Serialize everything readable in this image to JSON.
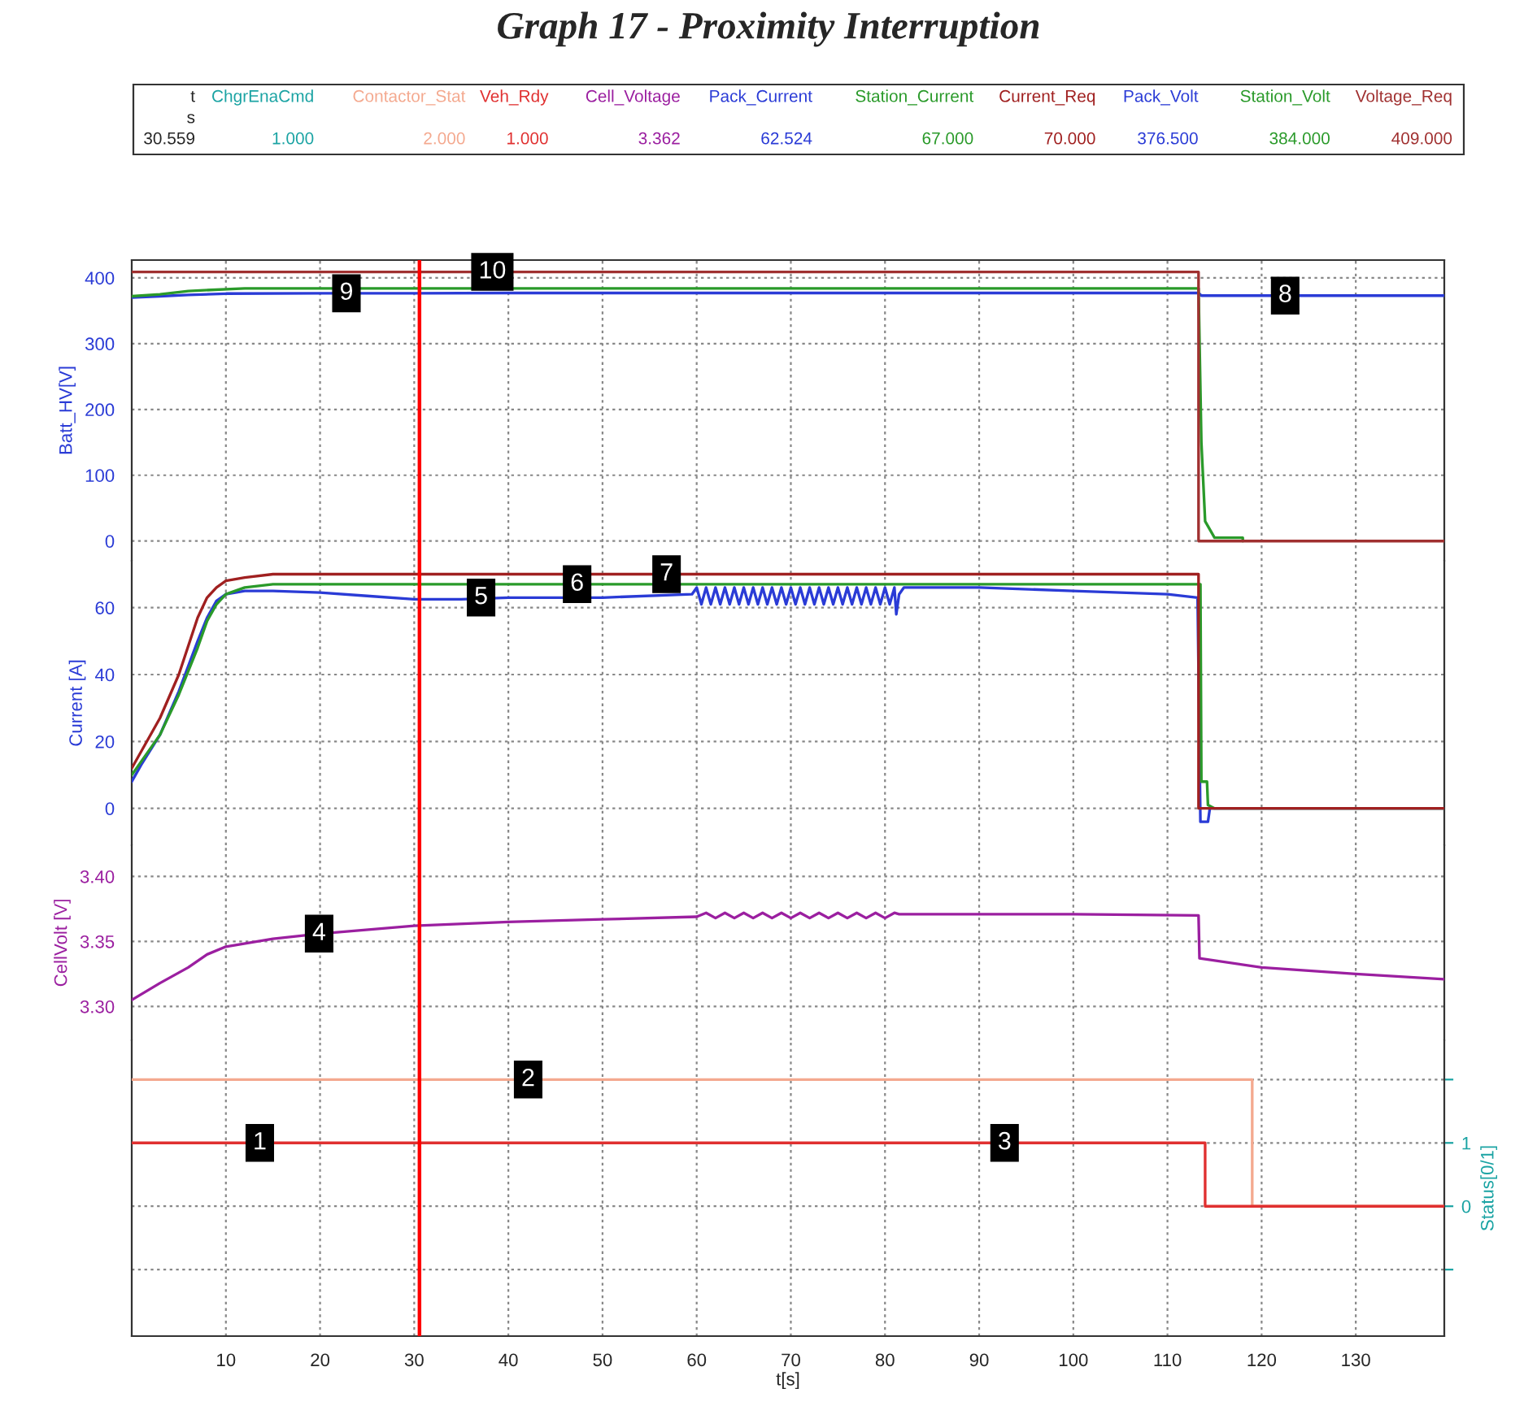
{
  "chart_data": [
    {
      "type": "line",
      "title": "Graph 17 - Proximity Interruption",
      "ylabel": "Batt_HV[V]",
      "xlim": [
        0,
        139.4
      ],
      "xticks": [
        10,
        20,
        30,
        40,
        50,
        60,
        70,
        80,
        90,
        100,
        110,
        120,
        130
      ],
      "ylim": [
        -30,
        427
      ],
      "yticks": [
        0,
        100,
        200,
        300,
        400
      ],
      "grid": true,
      "tick_labels": "y",
      "series": [
        {
          "name": "Pack_Volt",
          "color": "#2a3bd6",
          "x": [
            0,
            3,
            6,
            10,
            20,
            30,
            40,
            60,
            80,
            100,
            113.3,
            113.6,
            120,
            139.4
          ],
          "values": [
            370,
            372,
            374,
            376,
            376.5,
            376.5,
            377,
            377,
            377,
            377,
            377,
            373,
            373,
            373
          ]
        },
        {
          "name": "Station_Volt",
          "color": "#2a9a2a",
          "x": [
            0,
            3,
            6,
            12,
            20,
            40,
            60,
            80,
            100,
            113.3,
            113.6,
            114,
            115,
            118,
            118
          ],
          "values": [
            372,
            375,
            380,
            384,
            384,
            384,
            384,
            384,
            384,
            384,
            150,
            30,
            5,
            5,
            0
          ]
        },
        {
          "name": "Voltage_Req",
          "color": "#a03030",
          "x": [
            0,
            113.3,
            113.3,
            139.4
          ],
          "values": [
            409,
            409,
            0,
            0
          ]
        }
      ],
      "ref_lines": [
        {
          "axis": "x",
          "value": 30.559,
          "color": "#ff0000"
        }
      ],
      "annotations": [
        "376.500",
        "384.000",
        "409.000",
        {
          "text": "8",
          "x": 122.5,
          "y": 373
        },
        {
          "text": "9",
          "x": 22.8,
          "y": 376.5
        },
        {
          "text": "10",
          "x": 38.3,
          "y": 409
        },
        "t",
        "s",
        "30.559"
      ]
    },
    {
      "type": "line",
      "ylabel": "Current [A]",
      "xlim": [
        0,
        139.4
      ],
      "xticks": [
        10,
        20,
        30,
        40,
        50,
        60,
        70,
        80,
        90,
        100,
        110,
        120,
        130
      ],
      "ylim": [
        -11,
        74
      ],
      "yticks": [
        0,
        20,
        40,
        60
      ],
      "grid": true,
      "tick_labels": "y",
      "series": [
        {
          "name": "Pack_Current",
          "color": "#2a3bd6",
          "x": [
            0,
            1,
            3,
            5,
            7,
            8,
            9,
            10,
            12,
            15,
            20,
            25,
            30,
            35,
            40,
            50,
            59.5,
            60,
            60.5,
            61,
            61.5,
            62,
            62.5,
            63,
            63.5,
            64,
            64.5,
            65,
            65.5,
            66,
            66.5,
            67,
            67.5,
            68,
            68.5,
            69,
            69.5,
            70,
            70.5,
            71,
            71.5,
            72,
            72.5,
            73,
            73.5,
            74,
            74.5,
            75,
            75.5,
            76,
            76.5,
            77,
            77.5,
            78,
            78.5,
            79,
            79.5,
            80,
            80.5,
            81,
            81.2,
            81.5,
            82,
            90,
            100,
            110,
            113.2,
            113.5,
            114.3,
            114.5,
            139.4
          ],
          "values": [
            8,
            13,
            22,
            35,
            50,
            57,
            62,
            64,
            65,
            65,
            64.5,
            63.5,
            62.5,
            62.5,
            63,
            63,
            64,
            66,
            61,
            66,
            61,
            66,
            61,
            66,
            61,
            66,
            61,
            66,
            61,
            66,
            61,
            66,
            61,
            66,
            61,
            66,
            61,
            66,
            61,
            66,
            61,
            66,
            61,
            66,
            61,
            66,
            61,
            66,
            61,
            66,
            61,
            66,
            61,
            66,
            61,
            66,
            61,
            66,
            61,
            66,
            58,
            64,
            66,
            66,
            65,
            64,
            63,
            -4,
            -4,
            0,
            0
          ]
        },
        {
          "name": "Station_Current",
          "color": "#2a9a2a",
          "x": [
            0,
            3,
            5,
            7,
            8,
            9,
            10,
            12,
            15,
            113.5,
            113.6,
            114.2,
            114.3,
            115,
            139.4
          ],
          "values": [
            10,
            22,
            34,
            48,
            56,
            61,
            64,
            66,
            67,
            67,
            8,
            8,
            1,
            0,
            0
          ]
        },
        {
          "name": "Current_Req",
          "color": "#a02020",
          "x": [
            0,
            3,
            5,
            7,
            8,
            9,
            10,
            12,
            15,
            113.3,
            113.3,
            139.4
          ],
          "values": [
            12,
            27,
            40,
            57,
            63,
            66,
            68,
            69,
            70,
            70,
            0,
            0
          ]
        }
      ],
      "ref_lines": [
        {
          "axis": "x",
          "value": 30.559,
          "color": "#ff0000"
        }
      ],
      "annotations": [
        "62.524",
        "67.000",
        "70.000",
        {
          "text": "5",
          "x": 37.1,
          "y": 63
        },
        {
          "text": "6",
          "x": 47.3,
          "y": 67
        },
        {
          "text": "7",
          "x": 56.8,
          "y": 70
        }
      ]
    },
    {
      "type": "line",
      "ylabel": "CellVolt [V]",
      "xlim": [
        0,
        139.4
      ],
      "xticks": [
        10,
        20,
        30,
        40,
        50,
        60,
        70,
        80,
        90,
        100,
        110,
        120,
        130
      ],
      "ylim": [
        3.274,
        3.424
      ],
      "yticks": [
        {
          "value": 3.3,
          "label": "3.30"
        },
        {
          "value": 3.35,
          "label": "3.35"
        },
        {
          "value": 3.4,
          "label": "3.40"
        }
      ],
      "grid": true,
      "tick_labels": "y",
      "series": [
        {
          "name": "Cell_Voltage",
          "color": "#9b1fa0",
          "x": [
            0,
            3,
            6,
            8,
            10,
            15,
            20,
            30,
            40,
            50,
            60,
            61,
            62,
            63,
            64,
            65,
            66,
            67,
            68,
            69,
            70,
            71,
            72,
            73,
            74,
            75,
            76,
            77,
            78,
            79,
            80,
            81,
            81.5,
            90,
            100,
            113.3,
            113.4,
            120,
            130,
            139.4
          ],
          "values": [
            3.305,
            3.318,
            3.33,
            3.34,
            3.346,
            3.352,
            3.356,
            3.362,
            3.365,
            3.367,
            3.369,
            3.372,
            3.368,
            3.372,
            3.368,
            3.372,
            3.368,
            3.372,
            3.368,
            3.372,
            3.368,
            3.372,
            3.368,
            3.372,
            3.368,
            3.372,
            3.368,
            3.372,
            3.368,
            3.372,
            3.368,
            3.372,
            3.371,
            3.371,
            3.371,
            3.37,
            3.337,
            3.33,
            3.325,
            3.321
          ]
        }
      ],
      "ref_lines": [
        {
          "axis": "x",
          "value": 30.559,
          "color": "#ff0000"
        }
      ],
      "annotations": [
        "3.362",
        {
          "text": "4",
          "x": 19.9,
          "y": 3.356
        }
      ]
    },
    {
      "type": "line",
      "xlabel": "t[s]",
      "ylabel": "Status[0/1]",
      "xlim": [
        0,
        139.4
      ],
      "xticks": [
        10,
        20,
        30,
        40,
        50,
        60,
        70,
        80,
        90,
        100,
        110,
        120,
        130
      ],
      "ylim": [
        -2.05,
        2.62
      ],
      "yticks": [
        {
          "value": -1,
          "label": null
        },
        0,
        1,
        {
          "value": 2,
          "label": null
        }
      ],
      "grid": true,
      "series": [
        {
          "name": "ChgrEnaCmd",
          "color": "#1aa3a3"
        },
        {
          "name": "Contactor_Stat",
          "color": "#f4a98f",
          "x": [
            0,
            119,
            119,
            139.4
          ],
          "values": [
            2,
            2,
            0,
            0
          ]
        },
        {
          "name": "Veh_Rdy",
          "color": "#e03030",
          "x": [
            0,
            114,
            114,
            139.4
          ],
          "values": [
            1,
            1,
            0,
            0
          ]
        }
      ],
      "ref_lines": [
        {
          "axis": "x",
          "value": 30.559,
          "color": "#ff0000"
        }
      ],
      "annotations": [
        "1.000",
        "2.000",
        "1.000",
        {
          "text": "1",
          "x": 13.6,
          "y": 1
        },
        {
          "text": "2",
          "x": 42.1,
          "y": 2
        },
        {
          "text": "3",
          "x": 92.7,
          "y": 1
        }
      ]
    }
  ]
}
